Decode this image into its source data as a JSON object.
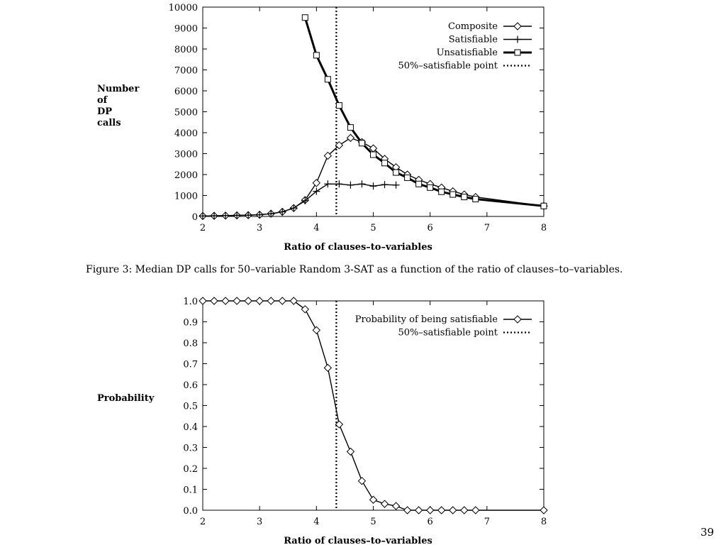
{
  "caption": "Figure 3: Median DP calls for 50–variable Random 3-SAT as a function of the ratio of clauses–to–variables.",
  "page_number": "39",
  "chart_data": [
    {
      "type": "line",
      "ylabel_lines": [
        "Number",
        "of",
        "DP",
        "calls"
      ],
      "xlabel": "Ratio of clauses–to–variables",
      "xlim": [
        2,
        8
      ],
      "ylim": [
        0,
        10000
      ],
      "xticks": [
        "2",
        "3",
        "4",
        "5",
        "6",
        "7",
        "8"
      ],
      "yticks": [
        "0",
        "1000",
        "2000",
        "3000",
        "4000",
        "5000",
        "6000",
        "7000",
        "8000",
        "9000",
        "10000"
      ],
      "threshold_x": 4.35,
      "legend_position": "top-right",
      "series": [
        {
          "name": "Composite",
          "marker": "diamond",
          "x": [
            2.0,
            2.2,
            2.4,
            2.6,
            2.8,
            3.0,
            3.2,
            3.4,
            3.6,
            3.8,
            4.0,
            4.2,
            4.4,
            4.6,
            4.8,
            5.0,
            5.2,
            5.4,
            5.6,
            5.8,
            6.0,
            6.2,
            6.4,
            6.6,
            6.8,
            8.0
          ],
          "y": [
            20,
            30,
            40,
            50,
            60,
            80,
            130,
            220,
            400,
            780,
            1600,
            2900,
            3400,
            3750,
            3550,
            3250,
            2750,
            2350,
            2000,
            1750,
            1550,
            1380,
            1200,
            1050,
            930,
            500
          ]
        },
        {
          "name": "Satisfiable",
          "marker": "plus",
          "x": [
            2.0,
            2.2,
            2.4,
            2.6,
            2.8,
            3.0,
            3.2,
            3.4,
            3.6,
            3.8,
            4.0,
            4.2,
            4.4,
            4.6,
            4.8,
            5.0,
            5.2,
            5.4
          ],
          "y": [
            20,
            30,
            40,
            50,
            60,
            80,
            130,
            220,
            400,
            750,
            1200,
            1550,
            1550,
            1500,
            1550,
            1450,
            1520,
            1500
          ]
        },
        {
          "name": "Unsatisfiable",
          "marker": "square",
          "x": [
            3.8,
            4.0,
            4.2,
            4.4,
            4.6,
            4.8,
            5.0,
            5.2,
            5.4,
            5.6,
            5.8,
            6.0,
            6.2,
            6.4,
            6.6,
            6.8,
            8.0
          ],
          "y": [
            9500,
            7700,
            6550,
            5300,
            4250,
            3500,
            2950,
            2550,
            2100,
            1850,
            1550,
            1380,
            1180,
            1050,
            930,
            830,
            500
          ]
        }
      ],
      "threshold_legend": "50%–satisfiable point"
    },
    {
      "type": "line",
      "ylabel_lines": [
        "Probability"
      ],
      "xlabel": "Ratio of clauses–to–variables",
      "xlim": [
        2,
        8
      ],
      "ylim": [
        0,
        1
      ],
      "xticks": [
        "2",
        "3",
        "4",
        "5",
        "6",
        "7",
        "8"
      ],
      "yticks": [
        "0.0",
        "0.1",
        "0.2",
        "0.3",
        "0.4",
        "0.5",
        "0.6",
        "0.7",
        "0.8",
        "0.9",
        "1.0"
      ],
      "threshold_x": 4.35,
      "legend_position": "top-right",
      "series": [
        {
          "name": "Probability of being satisfiable",
          "marker": "diamond",
          "x": [
            2.0,
            2.2,
            2.4,
            2.6,
            2.8,
            3.0,
            3.2,
            3.4,
            3.6,
            3.8,
            4.0,
            4.2,
            4.4,
            4.6,
            4.8,
            5.0,
            5.2,
            5.4,
            5.6,
            5.8,
            6.0,
            6.2,
            6.4,
            6.6,
            6.8,
            8.0
          ],
          "y": [
            1.0,
            1.0,
            1.0,
            1.0,
            1.0,
            1.0,
            1.0,
            1.0,
            1.0,
            0.96,
            0.86,
            0.68,
            0.41,
            0.28,
            0.14,
            0.05,
            0.03,
            0.02,
            0.0,
            0.0,
            0.0,
            0.0,
            0.0,
            0.0,
            0.0,
            0.0
          ]
        }
      ],
      "threshold_legend": "50%–satisfiable point"
    }
  ]
}
